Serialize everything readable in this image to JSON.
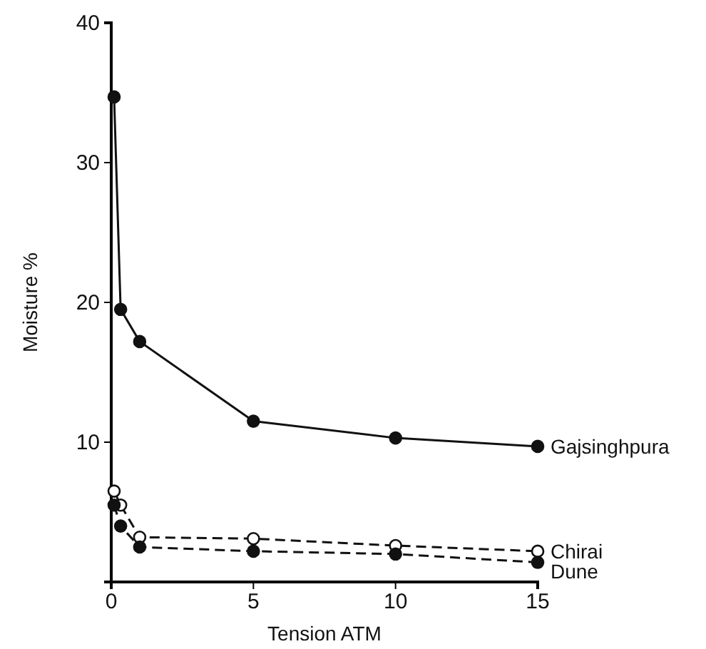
{
  "chart_data": {
    "type": "line",
    "xlabel": "Tension  ATM",
    "ylabel": "Moisture  %",
    "xlim": [
      0,
      15
    ],
    "ylim": [
      0,
      40
    ],
    "xticks": [
      0,
      5,
      10,
      15
    ],
    "yticks": [
      10,
      20,
      30,
      40
    ],
    "grid": false,
    "legend": false,
    "x": [
      0.1,
      0.33,
      1,
      5,
      10,
      15
    ],
    "series": [
      {
        "name": "Gajsinghpura",
        "color": "#111111",
        "marker": "circle",
        "line_style": "solid",
        "values": [
          34.7,
          19.5,
          17.2,
          11.5,
          10.3,
          9.7
        ]
      },
      {
        "name": "Chirai",
        "color": "#111111",
        "marker": "open-circle",
        "line_style": "dashed",
        "values": [
          6.5,
          5.5,
          3.2,
          3.1,
          2.6,
          2.2
        ]
      },
      {
        "name": "Dune",
        "color": "#111111",
        "marker": "circle",
        "line_style": "dashed",
        "values": [
          5.5,
          4.0,
          2.5,
          2.2,
          2.0,
          1.4
        ]
      }
    ]
  }
}
